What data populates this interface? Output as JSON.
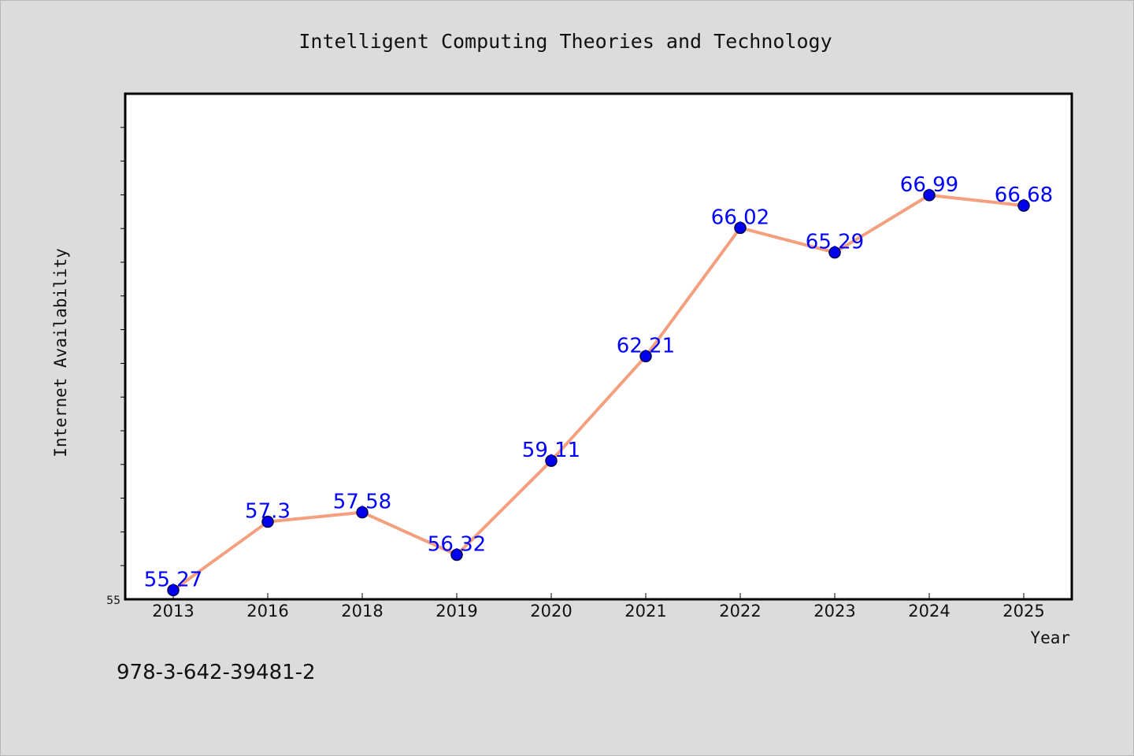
{
  "chart_data": {
    "type": "line",
    "title": "Intelligent Computing Theories and Technology",
    "xlabel": "Year",
    "ylabel": "Internet Availability",
    "categories": [
      "2013",
      "2016",
      "2018",
      "2019",
      "2020",
      "2021",
      "2022",
      "2023",
      "2024",
      "2025"
    ],
    "series": [
      {
        "values": [
          55.27,
          57.3,
          57.58,
          56.32,
          59.11,
          62.21,
          66.02,
          65.29,
          66.99,
          66.68
        ],
        "labels": [
          "55.27",
          "57.3",
          "57.58",
          "56.32",
          "59.11",
          "62.21",
          "66.02",
          "65.29",
          "66.99",
          "66.68"
        ]
      }
    ],
    "ylim": [
      55,
      70
    ],
    "ytick_labels": [
      "55"
    ],
    "grid": false,
    "colors": {
      "line": "#f4a07e",
      "marker": "#0000ee",
      "marker_edge": "#00004d",
      "data_label": "#0000ff",
      "plot_background": "#ffffff",
      "page_background": "#dcdcdc"
    }
  },
  "footer_text": "978-3-642-39481-2"
}
